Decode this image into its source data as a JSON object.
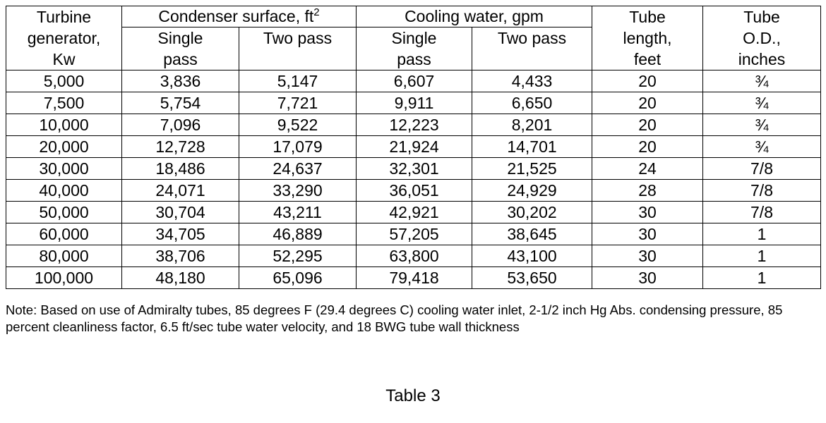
{
  "table": {
    "header": {
      "turbine_generator": [
        "Turbine",
        "generator,",
        "Kw"
      ],
      "condenser_surface": {
        "text": "Condenser surface, ft",
        "superscript": "2"
      },
      "cooling_water": "Cooling water, gpm",
      "tube_length": [
        "Tube",
        "length,",
        "feet"
      ],
      "tube_od": [
        "Tube",
        "O.D.,",
        "inches"
      ],
      "subheaders": [
        [
          "Single",
          "pass"
        ],
        [
          "Two pass"
        ],
        [
          "Single",
          "pass"
        ],
        [
          "Two pass"
        ]
      ]
    },
    "rows": [
      [
        "5,000",
        "3,836",
        "5,147",
        "6,607",
        "4,433",
        "20",
        "¾"
      ],
      [
        "7,500",
        "5,754",
        "7,721",
        "9,911",
        "6,650",
        "20",
        "¾"
      ],
      [
        "10,000",
        "7,096",
        "9,522",
        "12,223",
        "8,201",
        "20",
        "¾"
      ],
      [
        "20,000",
        "12,728",
        "17,079",
        "21,924",
        "14,701",
        "20",
        "¾"
      ],
      [
        "30,000",
        "18,486",
        "24,637",
        "32,301",
        "21,525",
        "24",
        "7/8"
      ],
      [
        "40,000",
        "24,071",
        "33,290",
        "36,051",
        "24,929",
        "28",
        "7/8"
      ],
      [
        "50,000",
        "30,704",
        "43,211",
        "42,921",
        "30,202",
        "30",
        "7/8"
      ],
      [
        "60,000",
        "34,705",
        "46,889",
        "57,205",
        "38,645",
        "30",
        "1"
      ],
      [
        "80,000",
        "38,706",
        "52,295",
        "63,800",
        "43,100",
        "30",
        "1"
      ],
      [
        "100,000",
        "48,180",
        "65,096",
        "79,418",
        "53,650",
        "30",
        "1"
      ]
    ]
  },
  "note": "Note: Based on use of Admiralty tubes, 85 degrees F (29.4 degrees C) cooling water inlet, 2-1/2 inch Hg Abs. condensing pressure, 85 percent cleanliness factor, 6.5 ft/sec tube water velocity, and 18 BWG tube wall thickness",
  "caption": "Table 3"
}
